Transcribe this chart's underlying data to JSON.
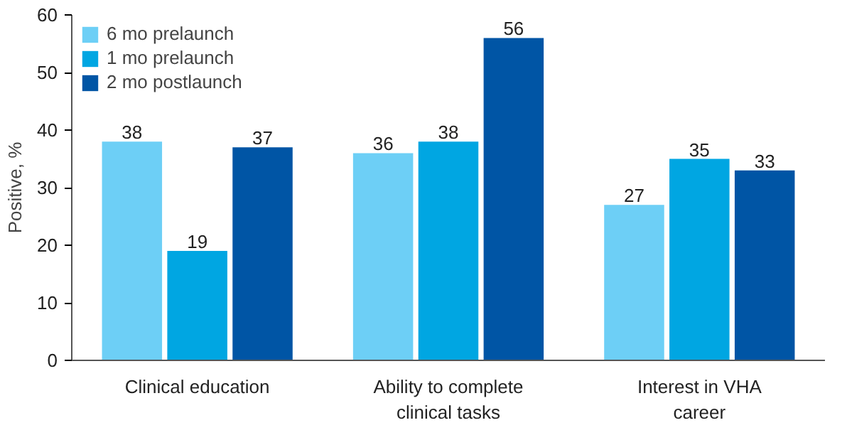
{
  "chart_data": {
    "type": "bar",
    "ylabel": "Positive, %",
    "categories": [
      "Clinical education",
      "Ability to complete clinical tasks",
      "Interest in VHA career"
    ],
    "series": [
      {
        "name": "6 mo prelaunch",
        "color": "#6dcff6",
        "values": [
          38,
          36,
          27
        ]
      },
      {
        "name": "1 mo prelaunch",
        "color": "#00a6e2",
        "values": [
          19,
          38,
          35
        ]
      },
      {
        "name": "2 mo postlaunch",
        "color": "#0055a5",
        "values": [
          37,
          56,
          33
        ]
      }
    ],
    "ylim": [
      0,
      60
    ],
    "yticks": [
      0,
      10,
      20,
      30,
      40,
      50,
      60
    ],
    "grid": false,
    "legend": "top left",
    "data_labels": true
  }
}
